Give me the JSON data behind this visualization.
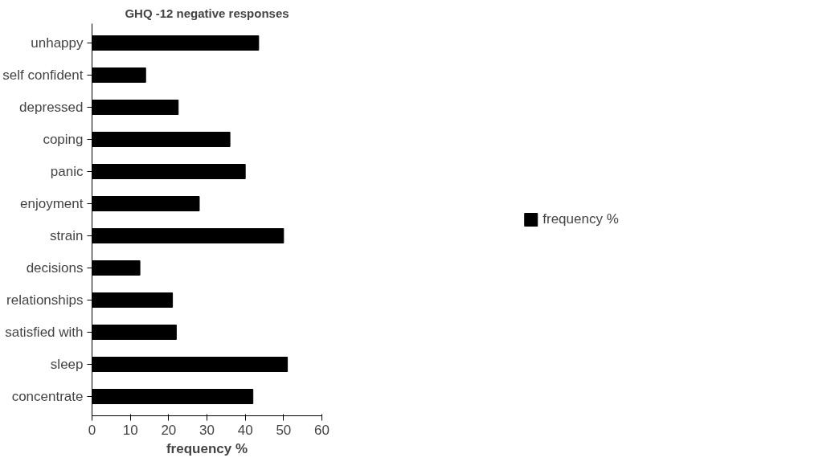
{
  "chart_data": {
    "type": "bar",
    "orientation": "horizontal",
    "title": "GHQ -12 negative responses",
    "xlabel": "frequency %",
    "categories": [
      "unhappy",
      "self confident",
      "depressed",
      "coping",
      "panic",
      "enjoyment",
      "strain",
      "decisions",
      "relationships",
      "satisfied with",
      "sleep",
      "concentrate"
    ],
    "series": [
      {
        "name": "frequency %",
        "color": "#000000",
        "values": [
          43.5,
          14,
          22.5,
          36,
          40,
          28,
          50,
          12.5,
          21,
          22,
          51,
          42
        ]
      }
    ],
    "xlim": [
      0,
      60
    ],
    "xticks": [
      0,
      10,
      20,
      30,
      40,
      50,
      60
    ],
    "grid": false,
    "legend": "right"
  }
}
